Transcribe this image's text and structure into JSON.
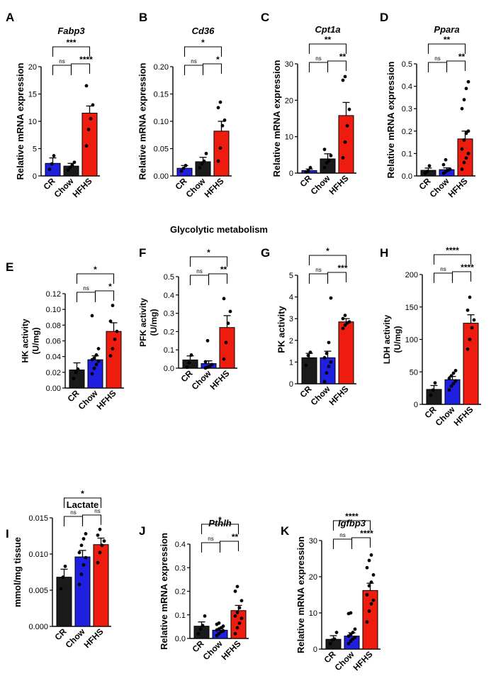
{
  "section_titles": {
    "glycolytic": "Glycolytic metabolism"
  },
  "colors": {
    "CR": "#1a1a1a",
    "Chow": "#1f1fe0",
    "HFHS": "#ee1c0e",
    "axis": "#000000"
  },
  "chart_data": [
    {
      "panel": "A",
      "type": "bar",
      "title": "Fabp3",
      "title_italic": true,
      "ylabel": "Relative mRNA expression",
      "ylim": [
        0,
        20
      ],
      "yticks": [
        "0",
        "5",
        "10",
        "15",
        "20"
      ],
      "ytick_values": [
        0,
        5,
        10,
        15,
        20
      ],
      "categories": [
        "CR",
        "Chow",
        "HFHS"
      ],
      "bar_colors": [
        "#1f1fe0",
        "#1a1a1a",
        "#ee1c0e"
      ],
      "means": [
        2.3,
        1.8,
        11.5
      ],
      "sem": [
        1.0,
        0.5,
        1.3
      ],
      "points": [
        [
          1.2,
          2.2,
          3.7
        ],
        [
          1.1,
          1.6,
          2.0,
          2.5
        ],
        [
          5.5,
          8.5,
          10.5,
          13.0,
          16.5
        ]
      ],
      "comparisons": [
        {
          "from": 1,
          "to": 2,
          "label": "****"
        },
        {
          "from": 0,
          "to": 1,
          "label": "ns"
        },
        {
          "from": 0,
          "to": 2,
          "label": "***"
        }
      ]
    },
    {
      "panel": "B",
      "type": "bar",
      "title": "Cd36",
      "title_italic": true,
      "ylabel": "Relative mRNA expression",
      "ylim": [
        0,
        0.2
      ],
      "yticks": [
        "0.00",
        "0.05",
        "0.10",
        "0.15",
        "0.20"
      ],
      "ytick_values": [
        0,
        0.05,
        0.1,
        0.15,
        0.2
      ],
      "categories": [
        "CR",
        "Chow",
        "HFHS"
      ],
      "bar_colors": [
        "#1f1fe0",
        "#1a1a1a",
        "#ee1c0e"
      ],
      "means": [
        0.014,
        0.026,
        0.082
      ],
      "sem": [
        0.005,
        0.008,
        0.018
      ],
      "points": [
        [
          0.009,
          0.014,
          0.019
        ],
        [
          0.015,
          0.022,
          0.027,
          0.041
        ],
        [
          0.027,
          0.051,
          0.092,
          0.102,
          0.125,
          0.135
        ]
      ],
      "comparisons": [
        {
          "from": 1,
          "to": 2,
          "label": "*"
        },
        {
          "from": 0,
          "to": 1,
          "label": "ns"
        },
        {
          "from": 0,
          "to": 2,
          "label": "*"
        }
      ]
    },
    {
      "panel": "C",
      "type": "bar",
      "title": "Cpt1a",
      "title_italic": true,
      "ylabel": "Relative mRNA expression",
      "ylim": [
        0,
        30
      ],
      "yticks": [
        "0",
        "10",
        "20",
        "30"
      ],
      "ytick_values": [
        0,
        10,
        20,
        30
      ],
      "categories": [
        "CR",
        "Chow",
        "HFHS"
      ],
      "bar_colors": [
        "#1f1fe0",
        "#1a1a1a",
        "#ee1c0e"
      ],
      "means": [
        0.7,
        3.9,
        15.8
      ],
      "sem": [
        0.4,
        1.4,
        3.6
      ],
      "points": [
        [
          0.3,
          0.6,
          1.5
        ],
        [
          1.5,
          2.8,
          3.4,
          4.8,
          6.5
        ],
        [
          4.2,
          8.5,
          13.0,
          17.5,
          25.5,
          26.5
        ]
      ],
      "comparisons": [
        {
          "from": 1,
          "to": 2,
          "label": "**"
        },
        {
          "from": 0,
          "to": 1,
          "label": "ns"
        },
        {
          "from": 0,
          "to": 2,
          "label": "**"
        }
      ]
    },
    {
      "panel": "D",
      "type": "bar",
      "title": "Ppara",
      "title_italic": true,
      "ylabel": "Relative mRNA expression",
      "ylim": [
        0,
        0.5
      ],
      "yticks": [
        "0.0",
        "0.1",
        "0.2",
        "0.3",
        "0.4",
        "0.5"
      ],
      "ytick_values": [
        0,
        0.1,
        0.2,
        0.3,
        0.4,
        0.5
      ],
      "categories": [
        "CR",
        "Chow",
        "HFHS"
      ],
      "bar_colors": [
        "#1a1a1a",
        "#1f1fe0",
        "#ee1c0e"
      ],
      "means": [
        0.025,
        0.028,
        0.165
      ],
      "sem": [
        0.01,
        0.008,
        0.035
      ],
      "points": [
        [
          0.012,
          0.02,
          0.045
        ],
        [
          0.012,
          0.018,
          0.025,
          0.03,
          0.05,
          0.072
        ],
        [
          0.03,
          0.06,
          0.08,
          0.1,
          0.12,
          0.16,
          0.19,
          0.2,
          0.3,
          0.34,
          0.39,
          0.42
        ]
      ],
      "comparisons": [
        {
          "from": 1,
          "to": 2,
          "label": "**"
        },
        {
          "from": 0,
          "to": 1,
          "label": "ns"
        },
        {
          "from": 0,
          "to": 2,
          "label": "**"
        }
      ]
    },
    {
      "panel": "E",
      "type": "bar",
      "title": "",
      "title_italic": false,
      "ylabel": "HK activity\n(U/mg)",
      "ylim": [
        0,
        0.12
      ],
      "yticks": [
        "0.00",
        "0.02",
        "0.04",
        "0.06",
        "0.08",
        "0.10",
        "0.12"
      ],
      "ytick_values": [
        0,
        0.02,
        0.04,
        0.06,
        0.08,
        0.1,
        0.12
      ],
      "categories": [
        "CR",
        "Chow",
        "HFHS"
      ],
      "bar_colors": [
        "#1a1a1a",
        "#1f1fe0",
        "#ee1c0e"
      ],
      "means": [
        0.023,
        0.036,
        0.072
      ],
      "sem": [
        0.009,
        0.005,
        0.011
      ],
      "points": [
        [
          0.012,
          0.02,
          0.024
        ],
        [
          0.018,
          0.025,
          0.03,
          0.034,
          0.036,
          0.038,
          0.042,
          0.05,
          0.092
        ],
        [
          0.041,
          0.05,
          0.062,
          0.072,
          0.085,
          0.105
        ]
      ],
      "comparisons": [
        {
          "from": 1,
          "to": 2,
          "label": "*"
        },
        {
          "from": 0,
          "to": 1,
          "label": "ns"
        },
        {
          "from": 0,
          "to": 2,
          "label": "*"
        }
      ]
    },
    {
      "panel": "F",
      "type": "bar",
      "title": "",
      "title_italic": false,
      "ylabel": "PFK activity\n(U/mg)",
      "ylim": [
        0,
        0.5
      ],
      "yticks": [
        "0.0",
        "0.1",
        "0.2",
        "0.3",
        "0.4",
        "0.5"
      ],
      "ytick_values": [
        0,
        0.1,
        0.2,
        0.3,
        0.4,
        0.5
      ],
      "categories": [
        "CR",
        "Chow",
        "HFHS"
      ],
      "bar_colors": [
        "#1a1a1a",
        "#1f1fe0",
        "#ee1c0e"
      ],
      "means": [
        0.045,
        0.025,
        0.222
      ],
      "sem": [
        0.022,
        0.015,
        0.065
      ],
      "points": [
        [
          0.005,
          0.03,
          0.072
        ],
        [
          0.001,
          0.005,
          0.01,
          0.02,
          0.035,
          0.15
        ],
        [
          0.05,
          0.14,
          0.245,
          0.31,
          0.38
        ]
      ],
      "comparisons": [
        {
          "from": 1,
          "to": 2,
          "label": "**"
        },
        {
          "from": 0,
          "to": 1,
          "label": "ns"
        },
        {
          "from": 0,
          "to": 2,
          "label": "*"
        }
      ]
    },
    {
      "panel": "G",
      "type": "bar",
      "title": "",
      "title_italic": false,
      "ylabel": "PK activity",
      "ylim": [
        0,
        5
      ],
      "yticks": [
        "0",
        "1",
        "2",
        "3",
        "4",
        "5"
      ],
      "ytick_values": [
        0,
        1,
        2,
        3,
        4,
        5
      ],
      "categories": [
        "CR",
        "Chow",
        "HFHS"
      ],
      "bar_colors": [
        "#1a1a1a",
        "#1f1fe0",
        "#ee1c0e"
      ],
      "means": [
        1.2,
        1.2,
        2.85
      ],
      "sem": [
        0.2,
        0.3,
        0.15
      ],
      "points": [
        [
          0.85,
          1.3,
          1.45
        ],
        [
          0.1,
          0.5,
          0.8,
          1.0,
          1.2,
          1.4,
          1.9,
          3.95
        ],
        [
          2.55,
          2.7,
          2.8,
          2.85,
          3.0,
          3.15
        ]
      ],
      "comparisons": [
        {
          "from": 1,
          "to": 2,
          "label": "***"
        },
        {
          "from": 0,
          "to": 1,
          "label": "ns"
        },
        {
          "from": 0,
          "to": 2,
          "label": "*"
        }
      ]
    },
    {
      "panel": "H",
      "type": "bar",
      "title": "",
      "title_italic": false,
      "ylabel": "LDH activity\n(U/mg)",
      "ylim": [
        0,
        200
      ],
      "yticks": [
        "0",
        "50",
        "100",
        "150",
        "200"
      ],
      "ytick_values": [
        0,
        50,
        100,
        150,
        200
      ],
      "categories": [
        "CR",
        "Chow",
        "HFHS"
      ],
      "bar_colors": [
        "#1a1a1a",
        "#1f1fe0",
        "#ee1c0e"
      ],
      "means": [
        23,
        38,
        125
      ],
      "sem": [
        6,
        5,
        13
      ],
      "points": [
        [
          14,
          22,
          33
        ],
        [
          22,
          28,
          32,
          36,
          40,
          44,
          48,
          52
        ],
        [
          85,
          100,
          118,
          130,
          145,
          165
        ]
      ],
      "comparisons": [
        {
          "from": 1,
          "to": 2,
          "label": "****"
        },
        {
          "from": 0,
          "to": 1,
          "label": "ns"
        },
        {
          "from": 0,
          "to": 2,
          "label": "****"
        }
      ]
    },
    {
      "panel": "I",
      "type": "bar",
      "title": "Lactate",
      "title_italic": false,
      "ylabel": "mmol/mg tissue",
      "ylim": [
        0,
        0.015
      ],
      "yticks": [
        "0.000",
        "0.005",
        "0.010",
        "0.015"
      ],
      "ytick_values": [
        0,
        0.005,
        0.01,
        0.015
      ],
      "categories": [
        "CR",
        "Chow",
        "HFHS"
      ],
      "bar_colors": [
        "#1a1a1a",
        "#1f1fe0",
        "#ee1c0e"
      ],
      "means": [
        0.0068,
        0.0096,
        0.0113
      ],
      "sem": [
        0.0011,
        0.0009,
        0.0009
      ],
      "points": [
        [
          0.0052,
          0.0068,
          0.0083
        ],
        [
          0.0058,
          0.0072,
          0.0085,
          0.0095,
          0.0102,
          0.0112,
          0.0121,
          0.0128
        ],
        [
          0.0088,
          0.0102,
          0.0112,
          0.0118,
          0.0126,
          0.0134
        ]
      ],
      "comparisons": [
        {
          "from": 1,
          "to": 2,
          "label": "ns"
        },
        {
          "from": 0,
          "to": 1,
          "label": "ns"
        },
        {
          "from": 0,
          "to": 2,
          "label": "*"
        }
      ]
    },
    {
      "panel": "J",
      "type": "bar",
      "title": "Pthlh",
      "title_italic": true,
      "ylabel": "Relative mRNA expression",
      "ylim": [
        0,
        0.4
      ],
      "yticks": [
        "0.0",
        "0.1",
        "0.2",
        "0.3",
        "0.4"
      ],
      "ytick_values": [
        0,
        0.1,
        0.2,
        0.3,
        0.4
      ],
      "categories": [
        "CR",
        "Chow",
        "HFHS"
      ],
      "bar_colors": [
        "#1a1a1a",
        "#1f1fe0",
        "#ee1c0e"
      ],
      "means": [
        0.052,
        0.035,
        0.118
      ],
      "sem": [
        0.018,
        0.006,
        0.022
      ],
      "points": [
        [
          0.02,
          0.04,
          0.055,
          0.095
        ],
        [
          0.012,
          0.02,
          0.028,
          0.032,
          0.036,
          0.04,
          0.045,
          0.052,
          0.06,
          0.065
        ],
        [
          0.02,
          0.045,
          0.065,
          0.085,
          0.095,
          0.11,
          0.13,
          0.16,
          0.2,
          0.22
        ]
      ],
      "comparisons": [
        {
          "from": 1,
          "to": 2,
          "label": "**"
        },
        {
          "from": 0,
          "to": 1,
          "label": "ns"
        },
        {
          "from": 0,
          "to": 2,
          "label": "*"
        }
      ]
    },
    {
      "panel": "K",
      "type": "bar",
      "title": "Igfbp3",
      "title_italic": true,
      "ylabel": "Relative mRNA expression",
      "ylim": [
        0,
        30
      ],
      "yticks": [
        "0",
        "10",
        "20",
        "30"
      ],
      "ytick_values": [
        0,
        10,
        20,
        30
      ],
      "categories": [
        "CR",
        "Chow",
        "HFHS"
      ],
      "bar_colors": [
        "#1a1a1a",
        "#1f1fe0",
        "#ee1c0e"
      ],
      "means": [
        2.7,
        3.6,
        16.2
      ],
      "sem": [
        1.0,
        0.9,
        2.0
      ],
      "points": [
        [
          1.5,
          2.5,
          2.8,
          4.6
        ],
        [
          1.5,
          2.2,
          2.8,
          3.2,
          3.6,
          4.0,
          4.6,
          5.5,
          9.8,
          10.0
        ],
        [
          7.5,
          10.5,
          12.5,
          13.5,
          15.0,
          17.5,
          18.5,
          20.5,
          22.5,
          24.5,
          26.0
        ]
      ],
      "comparisons": [
        {
          "from": 1,
          "to": 2,
          "label": "****"
        },
        {
          "from": 0,
          "to": 1,
          "label": "ns"
        },
        {
          "from": 0,
          "to": 2,
          "label": "****"
        }
      ]
    }
  ]
}
